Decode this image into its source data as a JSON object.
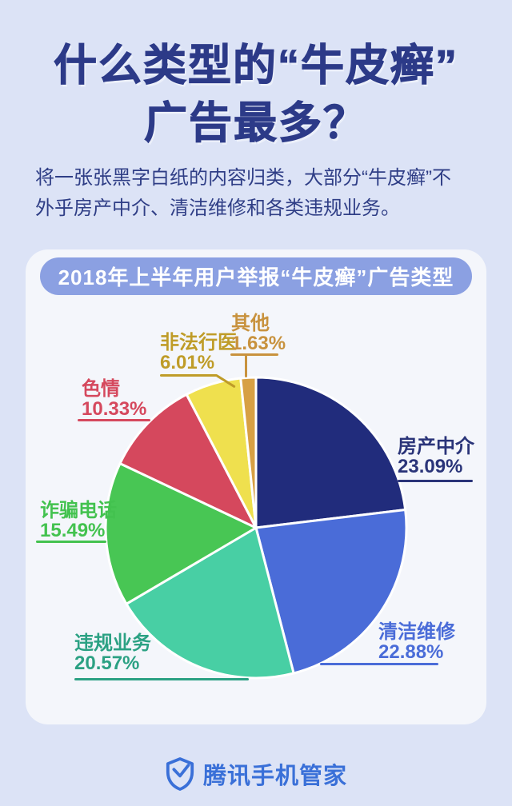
{
  "header": {
    "title_line1": "什么类型的“牛皮癣”",
    "title_line2": "广告最多？",
    "subtitle_line1": "将一张张黑字白纸的内容归类，大部分“牛皮癣”不",
    "subtitle_line2": "外乎房产中介、清洁维修和各类违规业务。"
  },
  "card": {
    "header": "2018年上半年用户举报“牛皮癣”广告类型"
  },
  "chart_data": {
    "type": "pie",
    "title": "2018年上半年用户举报“牛皮癣”广告类型",
    "start_angle_deg": 0,
    "direction": "clockwise",
    "legend_position": "labels-around-pie",
    "slices": [
      {
        "key": "housing-agency",
        "label": "房产中介",
        "value": 23.09,
        "display": "23.09%",
        "color": "#212c7c",
        "label_color": "#2a3479"
      },
      {
        "key": "cleaning-repair",
        "label": "清洁维修",
        "value": 22.88,
        "display": "22.88%",
        "color": "#4a6cd8",
        "label_color": "#4a6cd8"
      },
      {
        "key": "illegal-business",
        "label": "违规业务",
        "value": 20.57,
        "display": "20.57%",
        "color": "#48cfa4",
        "label_color": "#2ba183"
      },
      {
        "key": "scam-calls",
        "label": "诈骗电话",
        "value": 15.49,
        "display": "15.49%",
        "color": "#48c654",
        "label_color": "#43c24f"
      },
      {
        "key": "porn",
        "label": "色情",
        "value": 10.33,
        "display": "10.33%",
        "color": "#d5485d",
        "label_color": "#d5485d"
      },
      {
        "key": "illegal-medical",
        "label": "非法行医",
        "value": 6.01,
        "display": "6.01%",
        "color": "#efe04e",
        "label_color": "#bf9c28"
      },
      {
        "key": "other",
        "label": "其他",
        "value": 1.63,
        "display": "1.63%",
        "color": "#d7a044",
        "label_color": "#c8923e"
      }
    ]
  },
  "footer": {
    "brand": "腾讯手机管家"
  },
  "colors": {
    "page_bg": "#dce3f6",
    "card_bg": "#f4f6fb",
    "pill_bg": "#8ba0e2",
    "pill_text": "#ffffff",
    "title_color": "#2c3a88",
    "body_text": "#2f3e86",
    "footer_color": "#3a70d8",
    "slice_gap_stroke": "#ffffff"
  }
}
